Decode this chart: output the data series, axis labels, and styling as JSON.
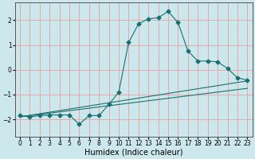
{
  "xlabel": "Humidex (Indice chaleur)",
  "background_color": "#cce8ec",
  "grid_color": "#e8a0a0",
  "line_color": "#1a7070",
  "xlim": [
    -0.5,
    23.5
  ],
  "ylim": [
    -2.7,
    2.7
  ],
  "yticks": [
    -2,
    -1,
    0,
    1,
    2
  ],
  "xticks": [
    0,
    1,
    2,
    3,
    4,
    5,
    6,
    7,
    8,
    9,
    10,
    11,
    12,
    13,
    14,
    15,
    16,
    17,
    18,
    19,
    20,
    21,
    22,
    23
  ],
  "line1_x": [
    0,
    23
  ],
  "line1_y": [
    -1.9,
    -0.45
  ],
  "line2_x": [
    0,
    23
  ],
  "line2_y": [
    -1.9,
    -0.75
  ],
  "curve_x": [
    0,
    1,
    2,
    3,
    4,
    5,
    6,
    7,
    8,
    9,
    10,
    11,
    12,
    13,
    14,
    15,
    16,
    17,
    18,
    19,
    20,
    21,
    22,
    23
  ],
  "curve_y": [
    -1.85,
    -1.9,
    -1.85,
    -1.82,
    -1.82,
    -1.82,
    -2.2,
    -1.85,
    -1.85,
    -1.4,
    -0.9,
    1.1,
    1.85,
    2.05,
    2.1,
    2.35,
    1.9,
    0.75,
    0.35,
    0.35,
    0.32,
    0.05,
    -0.32,
    -0.42
  ],
  "xlabel_fontsize": 7,
  "tick_fontsize": 5.5
}
